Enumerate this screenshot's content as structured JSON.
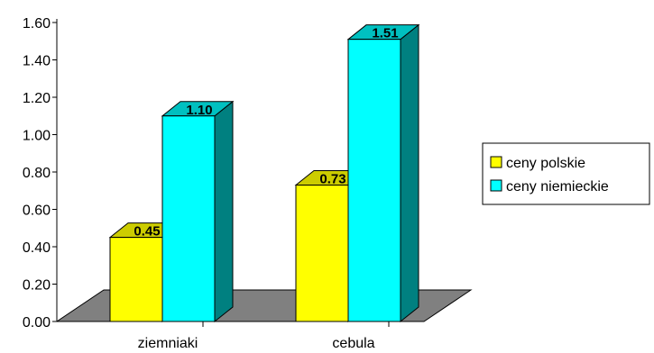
{
  "chart_data": {
    "type": "bar",
    "style": "3d-clustered",
    "categories": [
      "ziemniaki",
      "cebula"
    ],
    "series": [
      {
        "name": "ceny polskie",
        "values": [
          0.45,
          0.73
        ],
        "color": "#ffff00",
        "side_color": "#b3b300",
        "top_color": "#cccc00"
      },
      {
        "name": "ceny niemieckie",
        "values": [
          1.1,
          1.51
        ],
        "color": "#00ffff",
        "side_color": "#008080",
        "top_color": "#00c0c0"
      }
    ],
    "data_labels": [
      [
        "0.45",
        "0.73"
      ],
      [
        "1.10",
        "1.51"
      ]
    ],
    "y_ticks": [
      "0.00",
      "0.20",
      "0.40",
      "0.60",
      "0.80",
      "1.00",
      "1.20",
      "1.40",
      "1.60"
    ],
    "ylim": [
      0,
      1.6
    ],
    "floor_color": "#808080",
    "legend_position": "right",
    "grid": false
  }
}
